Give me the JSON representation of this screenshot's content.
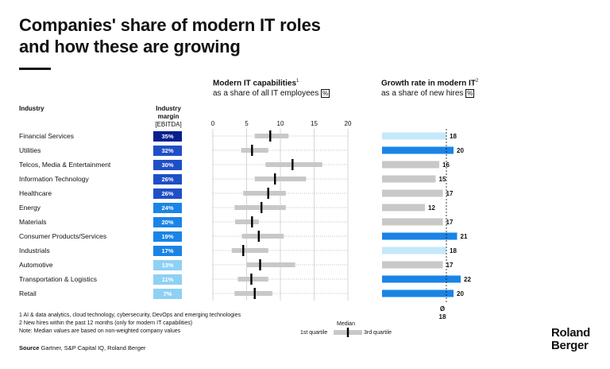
{
  "title_line1": "Companies' share of modern IT roles",
  "title_line2": "and how these are growing",
  "panel1": {
    "title": "Modern IT capabilities",
    "sup": "1",
    "subtitle": "as a share of all IT employees",
    "unit": "%"
  },
  "panel2": {
    "title": "Growth rate in modern IT",
    "sup": "2",
    "subtitle": "as a share of new hires",
    "unit": "%"
  },
  "industry_header": "Industry",
  "margin_header": {
    "line1": "Industry",
    "line2": "margin",
    "line3": "[EBITDA]"
  },
  "colors": {
    "navy": "#0a1f8f",
    "dark_blue": "#1f4fc7",
    "mid_blue": "#1a84e6",
    "light_blue": "#8fd0f5",
    "pale_blue": "#c5e8fb",
    "grey": "#c8c8c8",
    "black": "#000000"
  },
  "chart_data": [
    {
      "type": "box",
      "title": "Modern IT capabilities as a share of all IT employees [%]",
      "xlim": [
        0,
        20
      ],
      "xticks": [
        0,
        5,
        10,
        15,
        20
      ],
      "categories": [
        "Financial Services",
        "Utilities",
        "Telcos, Media & Entertainment",
        "Information Technology",
        "Healthcare",
        "Energy",
        "Materials",
        "Consumer Products/Services",
        "Industrials",
        "Automotive",
        "Transportation & Logistics",
        "Retail"
      ],
      "q1": [
        6.2,
        4.2,
        7.8,
        6.2,
        4.5,
        3.2,
        3.3,
        4.3,
        2.8,
        5.0,
        3.7,
        3.2
      ],
      "median": [
        8.5,
        5.8,
        11.8,
        9.2,
        8.2,
        7.2,
        5.8,
        6.8,
        4.5,
        7.0,
        5.7,
        6.2
      ],
      "q3": [
        11.2,
        8.2,
        16.2,
        13.8,
        10.8,
        10.8,
        6.8,
        10.5,
        8.2,
        12.2,
        8.2,
        8.8
      ],
      "ebitda_margin": [
        35,
        32,
        30,
        26,
        26,
        24,
        20,
        19,
        17,
        13,
        11,
        7
      ],
      "ebitda_labels": [
        "35%",
        "32%",
        "30%",
        "26%",
        "26%",
        "24%",
        "20%",
        "19%",
        "17%",
        "13%",
        "11%",
        "7%"
      ]
    },
    {
      "type": "bar",
      "title": "Growth rate in modern IT as a share of new hires [%]",
      "categories": [
        "Financial Services",
        "Utilities",
        "Telcos, Media & Entertainment",
        "Information Technology",
        "Healthcare",
        "Energy",
        "Materials",
        "Consumer Products/Services",
        "Industrials",
        "Automotive",
        "Transportation & Logistics",
        "Retail"
      ],
      "values": [
        18,
        20,
        16,
        15,
        17,
        12,
        17,
        21,
        18,
        17,
        22,
        20
      ],
      "bar_color_keys": [
        "pale_blue",
        "mid_blue",
        "grey",
        "grey",
        "grey",
        "grey",
        "grey",
        "mid_blue",
        "pale_blue",
        "grey",
        "mid_blue",
        "mid_blue"
      ],
      "average": 18,
      "average_label": "Ø",
      "xlim": [
        0,
        22
      ]
    }
  ],
  "legend": {
    "median": "Median",
    "q1": "1st quartile",
    "q3": "3rd quartile"
  },
  "footnotes": [
    "1  AI & data analytics, cloud technology, cybersecurity, DevOps and emerging technologies",
    "2  New hires within the past 12 months (only for modern IT capabilities)",
    "Note: Median values are based on non-weighted company values"
  ],
  "source_label": "Source",
  "source_text": " Gartner, S&P Capital IQ, Roland Berger",
  "logo_line1": "Roland",
  "logo_line2": "Berger"
}
